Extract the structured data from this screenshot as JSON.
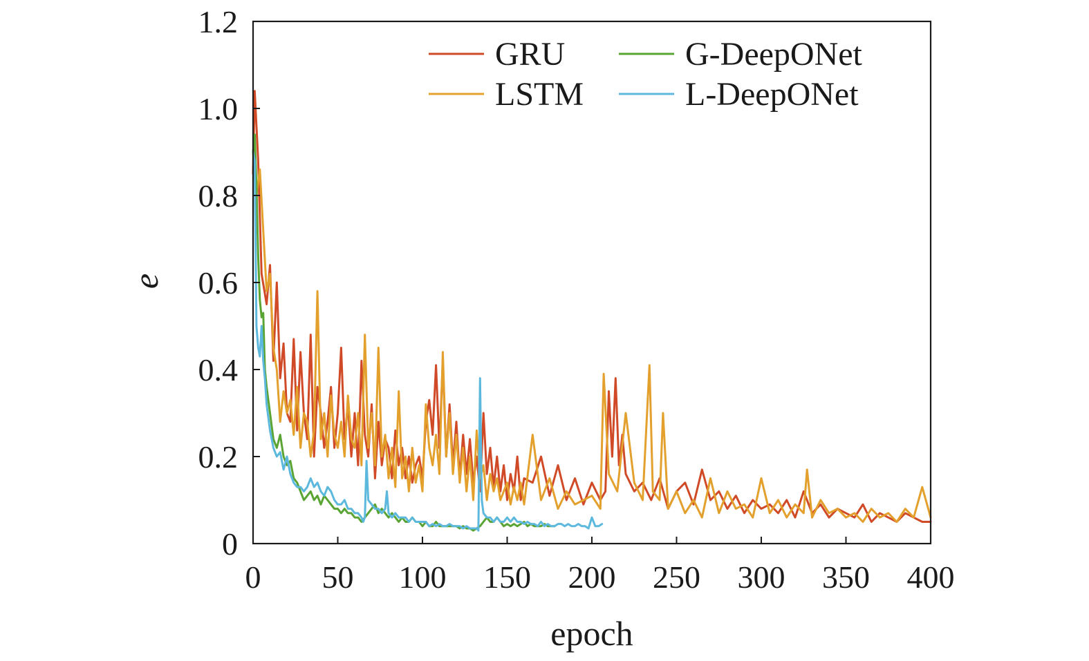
{
  "chart_data": {
    "type": "line",
    "title": "",
    "xlabel": "epoch",
    "ylabel": "e",
    "xlim": [
      0,
      400
    ],
    "ylim": [
      0,
      1.2
    ],
    "xticks": [
      0,
      50,
      100,
      150,
      200,
      250,
      300,
      350,
      400
    ],
    "xtick_labels": [
      "0",
      "50",
      "100",
      "150",
      "200",
      "250",
      "300",
      "350",
      "400"
    ],
    "yticks": [
      0,
      0.2,
      0.4,
      0.6,
      0.8,
      1.0,
      1.2
    ],
    "ytick_labels": [
      "0",
      "0.2",
      "0.4",
      "0.6",
      "0.8",
      "1.0",
      "1.2"
    ],
    "grid": false,
    "legend_position": "top-right",
    "series": [
      {
        "name": "GRU",
        "color": "#d04a27",
        "x": [
          0,
          1,
          3,
          5,
          8,
          10,
          12,
          14,
          16,
          18,
          20,
          22,
          24,
          26,
          28,
          30,
          32,
          34,
          36,
          38,
          40,
          42,
          44,
          46,
          48,
          50,
          52,
          54,
          56,
          58,
          60,
          62,
          64,
          66,
          68,
          70,
          72,
          74,
          76,
          78,
          80,
          82,
          84,
          86,
          88,
          90,
          92,
          94,
          96,
          98,
          100,
          102,
          104,
          106,
          108,
          110,
          112,
          114,
          116,
          118,
          120,
          122,
          124,
          126,
          128,
          130,
          132,
          134,
          136,
          138,
          140,
          142,
          144,
          146,
          148,
          150,
          152,
          154,
          156,
          158,
          160,
          165,
          170,
          175,
          180,
          185,
          190,
          195,
          200,
          205,
          208,
          210,
          212,
          214,
          216,
          218,
          220,
          225,
          230,
          235,
          240,
          245,
          250,
          255,
          260,
          265,
          270,
          275,
          280,
          285,
          290,
          295,
          300,
          305,
          310,
          315,
          320,
          325,
          330,
          335,
          340,
          345,
          350,
          355,
          360,
          365,
          370,
          375,
          380,
          385,
          390,
          395,
          400
        ],
        "values": [
          0.85,
          1.04,
          0.88,
          0.62,
          0.55,
          0.64,
          0.42,
          0.6,
          0.38,
          0.46,
          0.3,
          0.28,
          0.47,
          0.26,
          0.44,
          0.3,
          0.24,
          0.48,
          0.2,
          0.36,
          0.3,
          0.22,
          0.28,
          0.36,
          0.22,
          0.3,
          0.45,
          0.24,
          0.32,
          0.2,
          0.3,
          0.18,
          0.42,
          0.25,
          0.2,
          0.32,
          0.15,
          0.28,
          0.18,
          0.24,
          0.22,
          0.15,
          0.26,
          0.18,
          0.22,
          0.15,
          0.2,
          0.14,
          0.18,
          0.2,
          0.15,
          0.28,
          0.33,
          0.25,
          0.41,
          0.22,
          0.42,
          0.2,
          0.32,
          0.18,
          0.28,
          0.15,
          0.25,
          0.16,
          0.24,
          0.14,
          0.2,
          0.12,
          0.3,
          0.16,
          0.22,
          0.13,
          0.2,
          0.12,
          0.18,
          0.1,
          0.16,
          0.12,
          0.2,
          0.1,
          0.15,
          0.14,
          0.2,
          0.11,
          0.18,
          0.1,
          0.15,
          0.09,
          0.14,
          0.1,
          0.12,
          0.35,
          0.2,
          0.38,
          0.18,
          0.25,
          0.16,
          0.12,
          0.14,
          0.1,
          0.15,
          0.08,
          0.12,
          0.14,
          0.09,
          0.17,
          0.1,
          0.12,
          0.08,
          0.11,
          0.07,
          0.1,
          0.08,
          0.09,
          0.07,
          0.1,
          0.06,
          0.12,
          0.07,
          0.09,
          0.06,
          0.08,
          0.07,
          0.06,
          0.09,
          0.05,
          0.07,
          0.06,
          0.05,
          0.07,
          0.06,
          0.05,
          0.05
        ]
      },
      {
        "name": "LSTM",
        "color": "#e3a02c",
        "x": [
          0,
          1,
          2,
          4,
          6,
          8,
          10,
          12,
          14,
          16,
          18,
          20,
          22,
          24,
          26,
          28,
          30,
          32,
          34,
          36,
          38,
          40,
          42,
          44,
          46,
          48,
          50,
          52,
          54,
          56,
          58,
          60,
          62,
          64,
          66,
          68,
          70,
          72,
          74,
          76,
          78,
          80,
          82,
          84,
          86,
          88,
          90,
          92,
          94,
          96,
          98,
          100,
          102,
          104,
          106,
          108,
          110,
          112,
          114,
          116,
          118,
          120,
          122,
          124,
          126,
          128,
          130,
          132,
          134,
          136,
          138,
          140,
          142,
          144,
          146,
          148,
          150,
          152,
          154,
          156,
          158,
          160,
          165,
          170,
          175,
          180,
          185,
          190,
          195,
          200,
          205,
          207,
          210,
          215,
          220,
          225,
          230,
          234,
          236,
          240,
          242,
          245,
          250,
          255,
          260,
          265,
          270,
          275,
          280,
          285,
          290,
          295,
          300,
          305,
          310,
          315,
          320,
          325,
          327,
          330,
          335,
          340,
          345,
          350,
          355,
          360,
          365,
          370,
          375,
          380,
          385,
          390,
          395,
          400
        ],
        "values": [
          0.9,
          0.85,
          0.8,
          0.86,
          0.72,
          0.58,
          0.62,
          0.45,
          0.4,
          0.28,
          0.35,
          0.3,
          0.33,
          0.25,
          0.36,
          0.22,
          0.3,
          0.28,
          0.2,
          0.26,
          0.58,
          0.24,
          0.3,
          0.2,
          0.34,
          0.25,
          0.22,
          0.28,
          0.2,
          0.34,
          0.24,
          0.22,
          0.3,
          0.18,
          0.48,
          0.22,
          0.3,
          0.18,
          0.45,
          0.2,
          0.25,
          0.15,
          0.22,
          0.13,
          0.35,
          0.15,
          0.2,
          0.12,
          0.22,
          0.14,
          0.18,
          0.12,
          0.32,
          0.22,
          0.18,
          0.25,
          0.16,
          0.44,
          0.2,
          0.3,
          0.16,
          0.25,
          0.14,
          0.22,
          0.12,
          0.2,
          0.1,
          0.26,
          0.15,
          0.18,
          0.1,
          0.16,
          0.12,
          0.15,
          0.1,
          0.12,
          0.14,
          0.09,
          0.13,
          0.1,
          0.14,
          0.09,
          0.25,
          0.1,
          0.15,
          0.08,
          0.12,
          0.09,
          0.1,
          0.11,
          0.08,
          0.39,
          0.16,
          0.12,
          0.3,
          0.14,
          0.1,
          0.41,
          0.12,
          0.1,
          0.3,
          0.08,
          0.12,
          0.07,
          0.1,
          0.06,
          0.15,
          0.07,
          0.12,
          0.08,
          0.09,
          0.06,
          0.15,
          0.07,
          0.1,
          0.06,
          0.09,
          0.07,
          0.17,
          0.06,
          0.1,
          0.07,
          0.08,
          0.06,
          0.07,
          0.05,
          0.08,
          0.06,
          0.07,
          0.05,
          0.08,
          0.06,
          0.13,
          0.06
        ]
      },
      {
        "name": "G-DeepONet",
        "color": "#5aa434",
        "x": [
          0,
          1,
          2,
          3,
          4,
          5,
          6,
          7,
          8,
          10,
          12,
          14,
          16,
          18,
          20,
          22,
          24,
          26,
          28,
          30,
          32,
          34,
          36,
          38,
          40,
          42,
          44,
          46,
          48,
          50,
          52,
          54,
          56,
          58,
          60,
          62,
          64,
          66,
          68,
          70,
          72,
          74,
          76,
          78,
          80,
          82,
          84,
          86,
          88,
          90,
          92,
          94,
          96,
          98,
          100,
          102,
          104,
          106,
          108,
          110,
          112,
          114,
          116,
          118,
          120,
          122,
          124,
          126,
          128,
          130,
          132,
          134,
          136,
          138,
          140,
          142,
          144,
          146,
          148,
          150,
          152,
          154,
          156,
          158,
          160,
          162,
          164,
          166,
          168,
          170,
          172,
          174,
          176,
          178
        ],
        "values": [
          0.9,
          0.94,
          0.82,
          0.66,
          0.56,
          0.52,
          0.53,
          0.4,
          0.36,
          0.3,
          0.24,
          0.22,
          0.25,
          0.2,
          0.18,
          0.19,
          0.15,
          0.14,
          0.12,
          0.1,
          0.11,
          0.12,
          0.1,
          0.11,
          0.09,
          0.11,
          0.1,
          0.09,
          0.08,
          0.08,
          0.07,
          0.08,
          0.07,
          0.07,
          0.06,
          0.06,
          0.05,
          0.06,
          0.07,
          0.08,
          0.09,
          0.07,
          0.08,
          0.07,
          0.06,
          0.07,
          0.06,
          0.05,
          0.06,
          0.05,
          0.05,
          0.06,
          0.05,
          0.05,
          0.04,
          0.05,
          0.04,
          0.04,
          0.05,
          0.04,
          0.04,
          0.04,
          0.04,
          0.04,
          0.04,
          0.035,
          0.04,
          0.035,
          0.035,
          0.03,
          0.035,
          0.04,
          0.05,
          0.06,
          0.05,
          0.05,
          0.06,
          0.05,
          0.04,
          0.045,
          0.04,
          0.045,
          0.04,
          0.045,
          0.05,
          0.04,
          0.045,
          0.04,
          0.04,
          0.04,
          0.045,
          0.04,
          0.04,
          0.04
        ]
      },
      {
        "name": "L-DeepONet",
        "color": "#5cb8dc",
        "x": [
          0,
          1,
          2,
          3,
          4,
          5,
          6,
          7,
          8,
          10,
          12,
          14,
          16,
          18,
          20,
          22,
          24,
          26,
          28,
          30,
          32,
          34,
          36,
          38,
          40,
          42,
          44,
          46,
          48,
          50,
          52,
          54,
          56,
          58,
          60,
          62,
          64,
          65,
          66,
          67,
          68,
          70,
          72,
          74,
          76,
          78,
          79,
          80,
          82,
          84,
          86,
          88,
          90,
          92,
          94,
          96,
          98,
          100,
          102,
          104,
          106,
          108,
          110,
          112,
          114,
          116,
          118,
          120,
          122,
          124,
          126,
          128,
          130,
          132,
          133,
          134,
          135,
          136,
          138,
          140,
          142,
          144,
          146,
          148,
          150,
          152,
          154,
          156,
          158,
          160,
          162,
          164,
          166,
          168,
          170,
          172,
          174,
          176,
          178,
          180,
          182,
          184,
          186,
          188,
          190,
          192,
          194,
          196,
          198,
          200,
          202,
          204,
          206
        ],
        "values": [
          0.9,
          0.88,
          0.5,
          0.45,
          0.43,
          0.5,
          0.42,
          0.38,
          0.32,
          0.26,
          0.22,
          0.2,
          0.21,
          0.17,
          0.2,
          0.16,
          0.14,
          0.13,
          0.13,
          0.12,
          0.13,
          0.15,
          0.13,
          0.14,
          0.12,
          0.11,
          0.13,
          0.12,
          0.1,
          0.09,
          0.09,
          0.1,
          0.08,
          0.08,
          0.07,
          0.07,
          0.06,
          0.05,
          0.06,
          0.19,
          0.1,
          0.09,
          0.08,
          0.08,
          0.07,
          0.08,
          0.12,
          0.07,
          0.06,
          0.07,
          0.06,
          0.06,
          0.06,
          0.05,
          0.06,
          0.05,
          0.05,
          0.05,
          0.05,
          0.04,
          0.045,
          0.04,
          0.045,
          0.04,
          0.04,
          0.045,
          0.04,
          0.04,
          0.04,
          0.035,
          0.04,
          0.035,
          0.035,
          0.035,
          0.03,
          0.38,
          0.1,
          0.07,
          0.06,
          0.06,
          0.05,
          0.06,
          0.05,
          0.05,
          0.06,
          0.05,
          0.06,
          0.05,
          0.05,
          0.045,
          0.05,
          0.045,
          0.045,
          0.04,
          0.05,
          0.04,
          0.045,
          0.04,
          0.04,
          0.045,
          0.045,
          0.04,
          0.045,
          0.04,
          0.04,
          0.045,
          0.04,
          0.04,
          0.035,
          0.06,
          0.04,
          0.04,
          0.045
        ]
      }
    ]
  }
}
